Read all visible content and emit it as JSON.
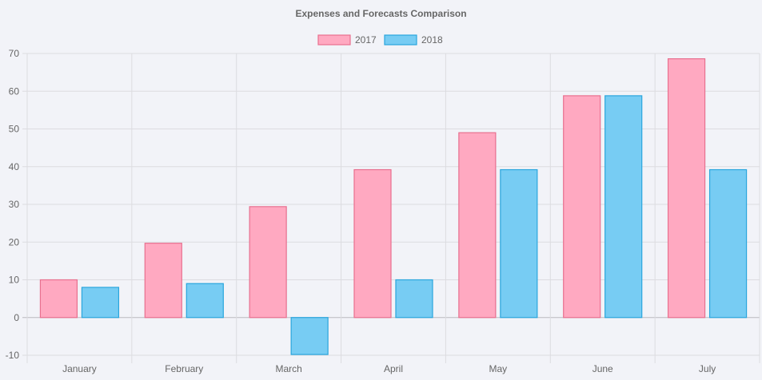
{
  "chart_data": {
    "type": "bar",
    "title": "Expenses and Forecasts Comparison",
    "categories": [
      "January",
      "February",
      "March",
      "April",
      "May",
      "June",
      "July"
    ],
    "series": [
      {
        "name": "2017",
        "values": [
          10,
          19.7,
          29.4,
          39.2,
          49,
          58.8,
          68.6
        ],
        "fill": "#ffa9c1",
        "stroke": "#e8708f"
      },
      {
        "name": "2018",
        "values": [
          8,
          9,
          -9.8,
          10,
          39.2,
          58.8,
          39.2
        ],
        "fill": "#77ccf3",
        "stroke": "#2aa6dd"
      }
    ],
    "yticks": [
      70,
      60,
      50,
      40,
      30,
      20,
      10,
      0,
      -10
    ],
    "ylim": [
      -10,
      70
    ],
    "grid": true,
    "legend_position": "top"
  }
}
